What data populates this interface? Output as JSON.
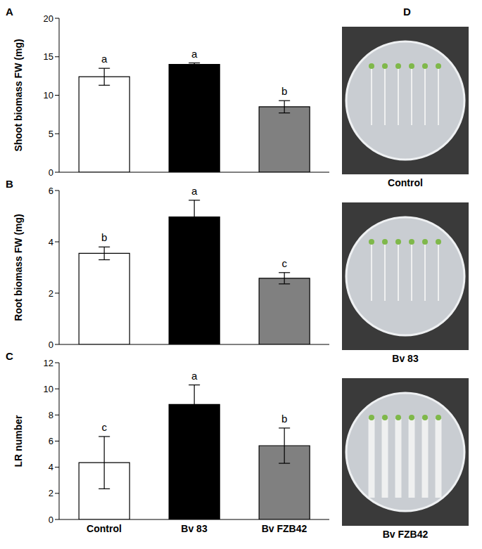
{
  "chart_data": [
    {
      "type": "bar",
      "title": "A",
      "y_label": "Shoot biomass FW (mg)",
      "categories": [
        "Control",
        "Bv 83",
        "Bv FZB42"
      ],
      "values": [
        12.4,
        14.0,
        8.5
      ],
      "errors": [
        1.1,
        0.2,
        0.8
      ],
      "annotations": [
        "a",
        "a",
        "b"
      ],
      "colors": [
        "#ffffff",
        "#000000",
        "#808080"
      ],
      "ylim": [
        0,
        20
      ],
      "yticks": [
        0,
        5,
        10,
        15,
        20
      ],
      "tick_labels": "y"
    },
    {
      "type": "bar",
      "title": "B",
      "y_label": "Root biomass FW (mg)",
      "categories": [
        "Control",
        "Bv 83",
        "Bv FZB42"
      ],
      "values": [
        3.55,
        4.97,
        2.58
      ],
      "errors": [
        0.25,
        0.65,
        0.22
      ],
      "annotations": [
        "b",
        "a",
        "c"
      ],
      "colors": [
        "#ffffff",
        "#000000",
        "#808080"
      ],
      "ylim": [
        0,
        6
      ],
      "yticks": [
        0,
        2,
        4,
        6
      ],
      "tick_labels": "y"
    },
    {
      "type": "bar",
      "title": "C",
      "y_label": "LR number",
      "categories": [
        "Control",
        "Bv 83",
        "Bv FZB42"
      ],
      "values": [
        4.35,
        8.8,
        5.65
      ],
      "errors": [
        2.0,
        1.5,
        1.35
      ],
      "annotations": [
        "c",
        "a",
        "b"
      ],
      "colors": [
        "#ffffff",
        "#000000",
        "#808080"
      ],
      "ylim": [
        0,
        12
      ],
      "yticks": [
        0,
        2,
        4,
        6,
        8,
        10,
        12
      ],
      "tick_labels": true
    }
  ],
  "photo_panel": {
    "label": "D",
    "captions": [
      "Control",
      "Bv 83",
      "Bv FZB42"
    ]
  }
}
